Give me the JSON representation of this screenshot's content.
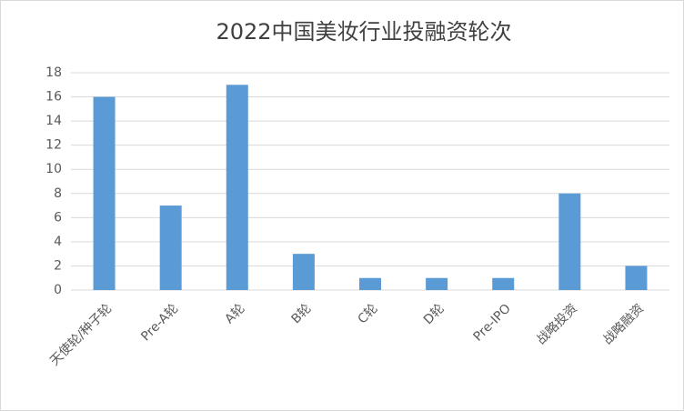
{
  "chart_data": {
    "type": "bar",
    "title": "2022中国美妆行业投融资轮次",
    "categories": [
      "天使轮/种子轮",
      "Pre-A轮",
      "A轮",
      "B轮",
      "C轮",
      "D轮",
      "Pre-IPO",
      "战略投资",
      "战略融资"
    ],
    "values": [
      16,
      7,
      17,
      3,
      1,
      1,
      1,
      8,
      2
    ],
    "color": "#5b9bd5",
    "ylim": [
      0,
      18
    ],
    "yticks": [
      0,
      2,
      4,
      6,
      8,
      10,
      12,
      14,
      16,
      18
    ],
    "grid": true
  }
}
